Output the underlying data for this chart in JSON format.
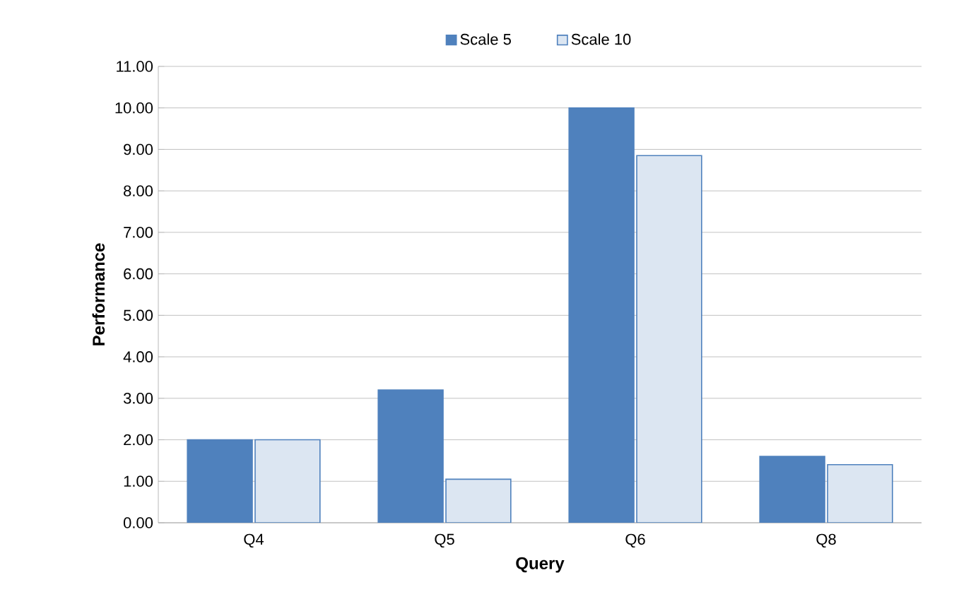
{
  "chart_data": {
    "type": "bar",
    "xlabel": "Query",
    "ylabel": "Performance",
    "categories": [
      "Q4",
      "Q5",
      "Q6",
      "Q8"
    ],
    "series": [
      {
        "name": "Scale 5",
        "color": "#4f81bd",
        "values": [
          2.0,
          3.2,
          10.0,
          1.6
        ]
      },
      {
        "name": "Scale 10",
        "color": "#dce6f2",
        "values": [
          2.0,
          1.05,
          8.85,
          1.4
        ]
      }
    ],
    "ylim": [
      0,
      11
    ],
    "yticks": [
      {
        "value": 0,
        "label": "0.00"
      },
      {
        "value": 1,
        "label": "1.00"
      },
      {
        "value": 2,
        "label": "2.00"
      },
      {
        "value": 3,
        "label": "3.00"
      },
      {
        "value": 4,
        "label": "4.00"
      },
      {
        "value": 5,
        "label": "5.00"
      },
      {
        "value": 6,
        "label": "6.00"
      },
      {
        "value": 7,
        "label": "7.00"
      },
      {
        "value": 8,
        "label": "8.00"
      },
      {
        "value": 9,
        "label": "9.00"
      },
      {
        "value": 10,
        "label": "10.00"
      },
      {
        "value": 11,
        "label": "11.00"
      }
    ],
    "grid": "y",
    "legend": "top"
  }
}
